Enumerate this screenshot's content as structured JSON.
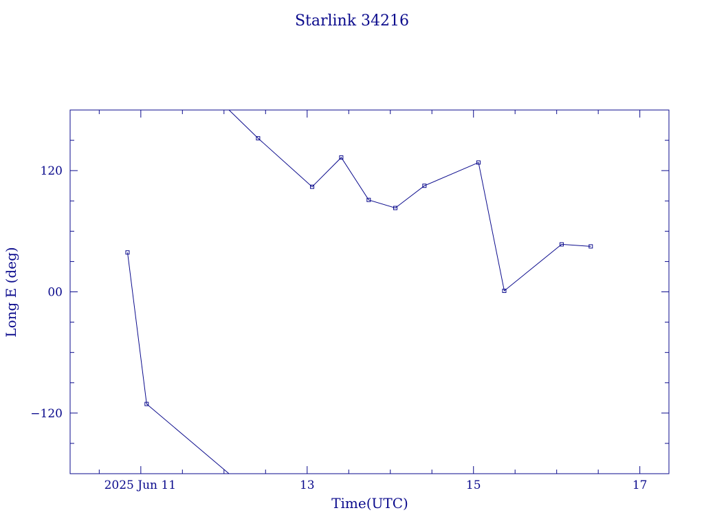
{
  "chart_data": {
    "type": "line",
    "title": "Starlink 34216",
    "xlabel": "Time(UTC)",
    "ylabel": "Long E (deg)",
    "x_unit": "days (June 2025)",
    "xlim": [
      10.15,
      17.35
    ],
    "ylim": [
      -180,
      180
    ],
    "x_ticks": [
      {
        "value": 11,
        "label": "2025 Jun 11"
      },
      {
        "value": 13,
        "label": "13"
      },
      {
        "value": 15,
        "label": "15"
      },
      {
        "value": 17,
        "label": "17"
      }
    ],
    "y_ticks": [
      {
        "value": 120,
        "label": "120"
      },
      {
        "value": 0,
        "label": "00"
      },
      {
        "value": -120,
        "label": "−120"
      }
    ],
    "x_minor_step": 0.5,
    "y_minor_step": 30,
    "color": "#0a0a8c",
    "segments": [
      [
        {
          "x": 10.84,
          "y": 39
        },
        {
          "x": 11.07,
          "y": -111
        },
        {
          "x": 12.06,
          "y": -180
        }
      ],
      [
        {
          "x": 12.06,
          "y": 180
        },
        {
          "x": 12.41,
          "y": 152
        },
        {
          "x": 13.06,
          "y": 104
        },
        {
          "x": 13.41,
          "y": 133
        },
        {
          "x": 13.74,
          "y": 91
        },
        {
          "x": 14.06,
          "y": 83
        },
        {
          "x": 14.41,
          "y": 105
        },
        {
          "x": 15.06,
          "y": 128
        },
        {
          "x": 15.37,
          "y": 1
        },
        {
          "x": 16.06,
          "y": 47
        },
        {
          "x": 16.41,
          "y": 45
        }
      ]
    ],
    "markers": [
      {
        "x": 10.84,
        "y": 39
      },
      {
        "x": 11.07,
        "y": -111
      },
      {
        "x": 12.41,
        "y": 152
      },
      {
        "x": 13.06,
        "y": 104
      },
      {
        "x": 13.41,
        "y": 133
      },
      {
        "x": 13.74,
        "y": 91
      },
      {
        "x": 14.06,
        "y": 83
      },
      {
        "x": 14.41,
        "y": 105
      },
      {
        "x": 15.06,
        "y": 128
      },
      {
        "x": 15.37,
        "y": 1
      },
      {
        "x": 16.06,
        "y": 47
      },
      {
        "x": 16.41,
        "y": 45
      }
    ]
  }
}
